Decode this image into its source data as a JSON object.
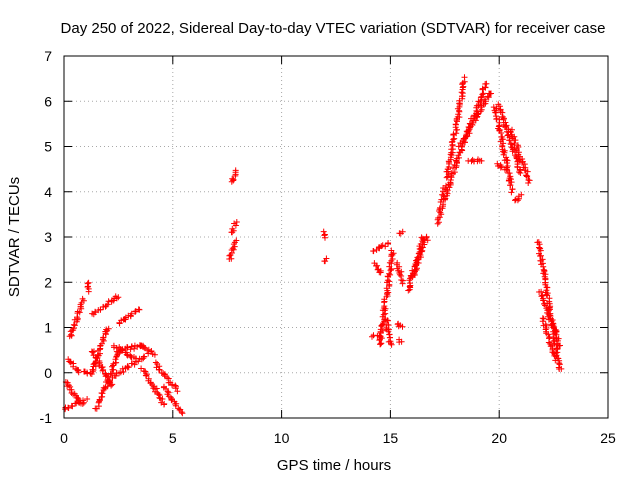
{
  "chart_data": {
    "type": "scatter",
    "title": "Day 250 of 2022, Sidereal Day-to-day VTEC variation (SDTVAR) for receiver case",
    "xlabel": "GPS time / hours",
    "ylabel": "SDTVAR / TECUs",
    "xlim": [
      0,
      25
    ],
    "ylim": [
      -1,
      7
    ],
    "xticks": [
      0,
      5,
      10,
      15,
      20,
      25
    ],
    "yticks": [
      -1,
      0,
      1,
      2,
      3,
      4,
      5,
      6,
      7
    ],
    "grid": true,
    "marker": "+",
    "color": "#ff0000",
    "segments": [
      {
        "name": "seg-a1",
        "x": [
          0.05,
          1.0
        ],
        "y": [
          -0.8,
          -0.6
        ]
      },
      {
        "name": "seg-a2",
        "x": [
          0.1,
          0.8
        ],
        "y": [
          -0.2,
          -0.7
        ]
      },
      {
        "name": "seg-a3",
        "x": [
          0.2,
          0.7
        ],
        "y": [
          0.3,
          0.0
        ]
      },
      {
        "name": "seg-a4",
        "x": [
          0.3,
          0.9
        ],
        "y": [
          0.8,
          1.6
        ]
      },
      {
        "name": "seg-a5",
        "x": [
          0.9,
          1.3
        ],
        "y": [
          0.0,
          0.0
        ]
      },
      {
        "name": "seg-a6",
        "x": [
          1.1,
          1.2
        ],
        "y": [
          2.0,
          1.8
        ]
      },
      {
        "name": "seg-b1",
        "x": [
          1.3,
          2.5
        ],
        "y": [
          1.3,
          1.7
        ]
      },
      {
        "name": "seg-b2",
        "x": [
          1.3,
          2.0
        ],
        "y": [
          0.0,
          1.0
        ]
      },
      {
        "name": "seg-b3",
        "x": [
          1.3,
          2.2
        ],
        "y": [
          0.5,
          -0.3
        ]
      },
      {
        "name": "seg-b4",
        "x": [
          1.5,
          2.6
        ],
        "y": [
          -0.8,
          0.5
        ]
      },
      {
        "name": "seg-b5",
        "x": [
          2.5,
          3.5
        ],
        "y": [
          1.1,
          1.4
        ]
      },
      {
        "name": "seg-b6",
        "x": [
          2.3,
          3.3
        ],
        "y": [
          0.6,
          0.3
        ]
      },
      {
        "name": "seg-c1",
        "x": [
          2.5,
          3.7
        ],
        "y": [
          0.5,
          0.6
        ]
      },
      {
        "name": "seg-c2",
        "x": [
          2.2,
          3.8
        ],
        "y": [
          -0.1,
          0.4
        ]
      },
      {
        "name": "seg-c3",
        "x": [
          3.5,
          4.2
        ],
        "y": [
          0.6,
          0.4
        ]
      },
      {
        "name": "seg-c4",
        "x": [
          3.6,
          4.6
        ],
        "y": [
          0.1,
          -0.7
        ]
      },
      {
        "name": "seg-c5",
        "x": [
          4.2,
          5.2
        ],
        "y": [
          0.2,
          -0.4
        ]
      },
      {
        "name": "seg-c6",
        "x": [
          4.6,
          5.4
        ],
        "y": [
          -0.3,
          -0.9
        ]
      },
      {
        "name": "seg-d1",
        "x": [
          7.7,
          7.9
        ],
        "y": [
          4.2,
          4.45
        ]
      },
      {
        "name": "seg-d2",
        "x": [
          7.7,
          7.9
        ],
        "y": [
          3.1,
          3.3
        ]
      },
      {
        "name": "seg-d3",
        "x": [
          7.6,
          7.9
        ],
        "y": [
          2.5,
          2.9
        ]
      },
      {
        "name": "seg-e1",
        "x": [
          12.0,
          12.0
        ],
        "y": [
          3.1,
          3.0
        ]
      },
      {
        "name": "seg-e2",
        "x": [
          12.0,
          12.0
        ],
        "y": [
          2.5,
          2.5
        ]
      },
      {
        "name": "seg-f1",
        "x": [
          14.2,
          14.9
        ],
        "y": [
          2.7,
          2.85
        ]
      },
      {
        "name": "seg-f2",
        "x": [
          14.3,
          14.6
        ],
        "y": [
          2.4,
          2.2
        ]
      },
      {
        "name": "seg-f3",
        "x": [
          14.5,
          15.1
        ],
        "y": [
          0.6,
          2.7
        ]
      },
      {
        "name": "seg-f4",
        "x": [
          14.2,
          14.6
        ],
        "y": [
          0.8,
          0.8
        ]
      },
      {
        "name": "seg-f5",
        "x": [
          14.8,
          15.0
        ],
        "y": [
          1.2,
          0.6
        ]
      },
      {
        "name": "seg-f6",
        "x": [
          15.3,
          15.5
        ],
        "y": [
          1.1,
          1.0
        ]
      },
      {
        "name": "seg-f7",
        "x": [
          15.4,
          15.5
        ],
        "y": [
          0.7,
          0.7
        ]
      },
      {
        "name": "seg-f8",
        "x": [
          15.3,
          15.6
        ],
        "y": [
          2.4,
          2.0
        ]
      },
      {
        "name": "seg-f9",
        "x": [
          15.4,
          15.5
        ],
        "y": [
          3.1,
          3.1
        ]
      },
      {
        "name": "seg-g1",
        "x": [
          15.8,
          16.5
        ],
        "y": [
          1.8,
          3.0
        ]
      },
      {
        "name": "seg-g2",
        "x": [
          16.0,
          16.7
        ],
        "y": [
          2.1,
          3.0
        ]
      },
      {
        "name": "seg-h1",
        "x": [
          17.2,
          17.5
        ],
        "y": [
          3.3,
          4.1
        ]
      },
      {
        "name": "seg-h2",
        "x": [
          17.5,
          18.0
        ],
        "y": [
          3.8,
          4.6
        ]
      },
      {
        "name": "seg-h3",
        "x": [
          17.6,
          18.4
        ],
        "y": [
          4.3,
          6.5
        ]
      },
      {
        "name": "seg-h4",
        "x": [
          18.0,
          19.4
        ],
        "y": [
          4.6,
          6.4
        ]
      },
      {
        "name": "seg-h5",
        "x": [
          18.2,
          19.6
        ],
        "y": [
          5.0,
          6.2
        ]
      },
      {
        "name": "seg-h6",
        "x": [
          18.6,
          19.2
        ],
        "y": [
          4.7,
          4.7
        ]
      },
      {
        "name": "seg-i1",
        "x": [
          19.8,
          20.6
        ],
        "y": [
          5.9,
          4.0
        ]
      },
      {
        "name": "seg-i2",
        "x": [
          20.0,
          21.0
        ],
        "y": [
          5.9,
          4.4
        ]
      },
      {
        "name": "seg-i3",
        "x": [
          20.5,
          21.4
        ],
        "y": [
          5.4,
          4.2
        ]
      },
      {
        "name": "seg-i4",
        "x": [
          19.9,
          20.2
        ],
        "y": [
          4.6,
          4.5
        ]
      },
      {
        "name": "seg-i5",
        "x": [
          20.7,
          21.0
        ],
        "y": [
          3.8,
          3.9
        ]
      },
      {
        "name": "seg-j1",
        "x": [
          21.8,
          22.8
        ],
        "y": [
          2.9,
          0.05
        ]
      },
      {
        "name": "seg-j2",
        "x": [
          21.9,
          22.8
        ],
        "y": [
          1.8,
          0.6
        ]
      },
      {
        "name": "seg-j3",
        "x": [
          22.0,
          22.6
        ],
        "y": [
          1.2,
          0.3
        ]
      }
    ]
  }
}
